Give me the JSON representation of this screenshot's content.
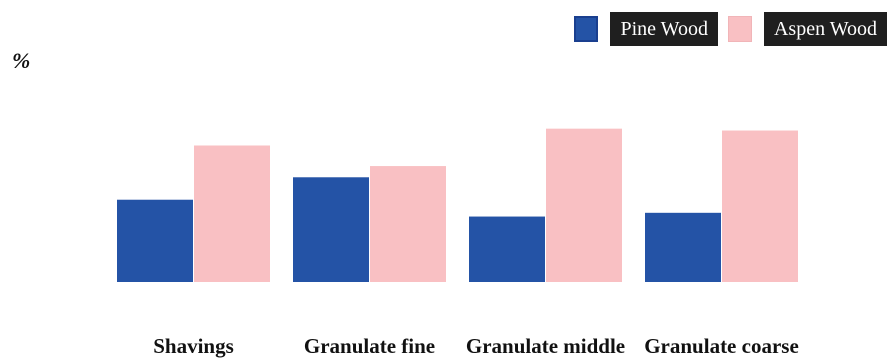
{
  "chart_data": {
    "type": "bar",
    "unit_label": "%",
    "categories": [
      "Shavings",
      "Granulate fine",
      "Granulate middle",
      "Granulate coarse"
    ],
    "series": [
      {
        "name": "Pine Wood",
        "color": "#2453a6",
        "values": [
          44,
          56,
          35,
          37
        ]
      },
      {
        "name": "Aspen Wood",
        "color": "#f9c0c3",
        "values": [
          73,
          62,
          82,
          81
        ]
      }
    ],
    "ylim": [
      0,
      100
    ],
    "grid": false,
    "legend_position": "top-right"
  }
}
